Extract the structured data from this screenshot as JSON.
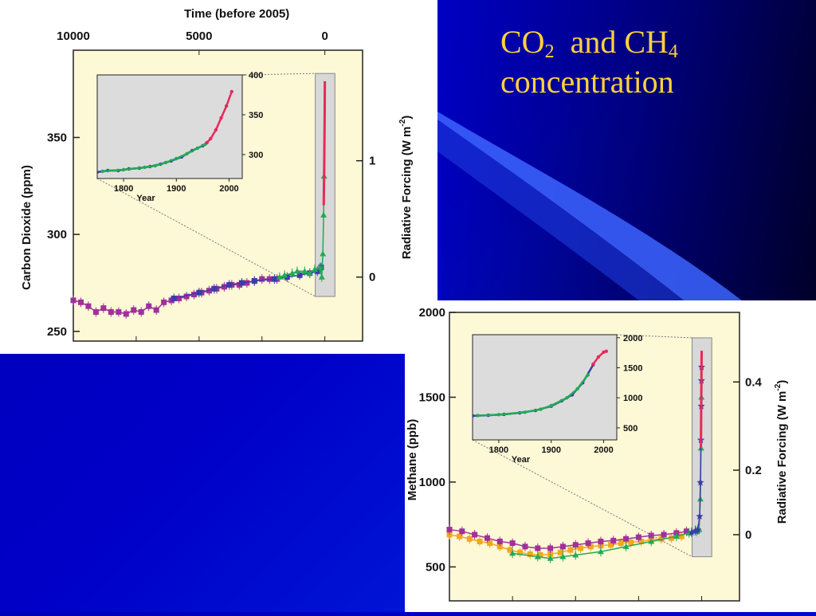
{
  "slide": {
    "title_line1_a": "CO",
    "title_line1_a_sub": "2",
    "title_line1_b": "  and CH",
    "title_line1_b_sub": "4",
    "title_line2": "concentration",
    "title_color": "#ffd23c",
    "background_color": "#0000c8"
  },
  "chart_data": [
    {
      "type": "scatter",
      "name": "co2",
      "title": "",
      "top_axis_label": "Time (before 2005)",
      "top_axis_ticks": [
        10000,
        5000,
        0
      ],
      "ylabel": "Carbon Dioxide (ppm)",
      "y_ticks": [
        250,
        300,
        350
      ],
      "ylim": [
        245,
        395
      ],
      "xlim": [
        10000,
        -1500
      ],
      "right_axis_label_main": "Radiative Forcing (W m",
      "right_axis_label_sup": "-2",
      "right_axis_label_end": ")",
      "right_axis_ticks": [
        "1",
        "0"
      ],
      "right_axis_tick_ppm": [
        338,
        278
      ],
      "background": "#fdf8d6",
      "series": [
        {
          "color": "#a0309a",
          "marker": "square",
          "points": [
            [
              10000,
              266
            ],
            [
              9700,
              265
            ],
            [
              9400,
              263
            ],
            [
              9100,
              260
            ],
            [
              8800,
              262
            ],
            [
              8500,
              260
            ],
            [
              8200,
              260
            ],
            [
              7900,
              259
            ],
            [
              7600,
              261
            ],
            [
              7300,
              260
            ],
            [
              7000,
              263
            ],
            [
              6700,
              261
            ],
            [
              6400,
              265
            ],
            [
              6100,
              266
            ],
            [
              5800,
              267
            ],
            [
              5500,
              268
            ],
            [
              5200,
              269
            ],
            [
              4900,
              270
            ],
            [
              4600,
              271
            ],
            [
              4300,
              272
            ],
            [
              4000,
              273
            ],
            [
              3700,
              274
            ],
            [
              3400,
              274
            ],
            [
              3100,
              275
            ],
            [
              2800,
              276
            ],
            [
              2500,
              277
            ],
            [
              2200,
              277
            ],
            [
              1900,
              277
            ]
          ]
        },
        {
          "color": "#3c3ca8",
          "marker": "square",
          "points": [
            [
              6000,
              267
            ],
            [
              5000,
              270
            ],
            [
              4400,
              272
            ],
            [
              3800,
              274
            ],
            [
              3300,
              275
            ],
            [
              2800,
              276
            ],
            [
              2000,
              277
            ],
            [
              1500,
              278
            ],
            [
              1000,
              279
            ],
            [
              600,
              280
            ],
            [
              300,
              281
            ],
            [
              150,
              283
            ]
          ]
        },
        {
          "color": "#22aa55",
          "marker": "triangle",
          "points": [
            [
              1800,
              278
            ],
            [
              1600,
              279
            ],
            [
              1300,
              280
            ],
            [
              1100,
              281
            ],
            [
              800,
              281
            ],
            [
              600,
              280
            ],
            [
              400,
              282
            ],
            [
              200,
              283
            ],
            [
              120,
              278
            ],
            [
              80,
              290
            ],
            [
              50,
              310
            ],
            [
              30,
              330
            ]
          ]
        },
        {
          "color": "#e8285a",
          "marker": "line",
          "points": [
            [
              45,
              315
            ],
            [
              35,
              325
            ],
            [
              25,
              335
            ],
            [
              15,
              350
            ],
            [
              5,
              365
            ],
            [
              0,
              379
            ]
          ]
        }
      ],
      "inset": {
        "xlabel": "Year",
        "x_ticks": [
          1800,
          1900,
          2000
        ],
        "xlim": [
          1750,
          2025
        ],
        "y_ticks": [
          300,
          350,
          400
        ],
        "ylim": [
          270,
          400
        ],
        "background": "#dcdcdc",
        "series": [
          {
            "color": "#3c3ca8",
            "points": [
              [
                1750,
                278
              ],
              [
                1770,
                280
              ],
              [
                1790,
                280
              ],
              [
                1810,
                282
              ],
              [
                1830,
                283
              ],
              [
                1850,
                285
              ],
              [
                1870,
                288
              ],
              [
                1890,
                292
              ],
              [
                1910,
                297
              ],
              [
                1930,
                305
              ],
              [
                1950,
                311
              ]
            ]
          },
          {
            "color": "#22aa55",
            "points": [
              [
                1760,
                279
              ],
              [
                1800,
                281
              ],
              [
                1840,
                284
              ],
              [
                1860,
                286
              ],
              [
                1880,
                290
              ],
              [
                1900,
                295
              ],
              [
                1920,
                301
              ],
              [
                1940,
                308
              ],
              [
                1955,
                313
              ]
            ]
          },
          {
            "color": "#e8285a",
            "points": [
              [
                1958,
                315
              ],
              [
                1965,
                320
              ],
              [
                1975,
                331
              ],
              [
                1985,
                346
              ],
              [
                1995,
                361
              ],
              [
                2005,
                379
              ]
            ]
          }
        ]
      }
    },
    {
      "type": "scatter",
      "name": "ch4",
      "title": "",
      "ylabel": "Methane (ppb)",
      "y_ticks": [
        500,
        1000,
        1500,
        2000
      ],
      "ylim": [
        300,
        2000
      ],
      "xlim": [
        10000,
        -1500
      ],
      "right_axis_label_main": "Radiative Forcing (W m",
      "right_axis_label_sup": "-2",
      "right_axis_label_end": ")",
      "right_axis_ticks": [
        "0.4",
        "0.2",
        "0"
      ],
      "right_axis_tick_ppb": [
        1590,
        1070,
        690
      ],
      "background": "#fdf8d6",
      "series": [
        {
          "color": "#f0a820",
          "marker": "square",
          "points": [
            [
              10000,
              690
            ],
            [
              9600,
              680
            ],
            [
              9200,
              665
            ],
            [
              8800,
              650
            ],
            [
              8400,
              640
            ],
            [
              8000,
              620
            ],
            [
              7600,
              600
            ],
            [
              7200,
              585
            ],
            [
              6800,
              575
            ],
            [
              6400,
              570
            ],
            [
              6000,
              575
            ],
            [
              5600,
              585
            ],
            [
              5200,
              600
            ],
            [
              4800,
              610
            ],
            [
              4400,
              620
            ],
            [
              4000,
              625
            ],
            [
              3600,
              630
            ],
            [
              3200,
              640
            ],
            [
              2800,
              645
            ],
            [
              2400,
              650
            ],
            [
              2000,
              660
            ],
            [
              1600,
              665
            ],
            [
              1200,
              670
            ],
            [
              800,
              680
            ]
          ]
        },
        {
          "color": "#a0309a",
          "marker": "square",
          "points": [
            [
              10000,
              720
            ],
            [
              9500,
              710
            ],
            [
              9000,
              690
            ],
            [
              8500,
              670
            ],
            [
              8000,
              650
            ],
            [
              7500,
              640
            ],
            [
              7000,
              620
            ],
            [
              6500,
              610
            ],
            [
              6000,
              610
            ],
            [
              5500,
              620
            ],
            [
              5000,
              630
            ],
            [
              4500,
              640
            ],
            [
              4000,
              650
            ],
            [
              3500,
              655
            ],
            [
              3000,
              665
            ],
            [
              2500,
              675
            ],
            [
              2000,
              685
            ],
            [
              1500,
              690
            ],
            [
              1000,
              700
            ],
            [
              600,
              710
            ]
          ]
        },
        {
          "color": "#22aa55",
          "marker": "triangle",
          "points": [
            [
              7500,
              580
            ],
            [
              6500,
              560
            ],
            [
              6000,
              550
            ],
            [
              5500,
              560
            ],
            [
              5000,
              570
            ],
            [
              4000,
              590
            ],
            [
              3000,
              620
            ],
            [
              2000,
              650
            ],
            [
              1000,
              680
            ],
            [
              500,
              700
            ],
            [
              200,
              710
            ],
            [
              100,
              720
            ],
            [
              50,
              900
            ],
            [
              25,
              1200
            ],
            [
              10,
              1500
            ]
          ]
        },
        {
          "color": "#3c3ca8",
          "marker": "star",
          "points": [
            [
              400,
              705
            ],
            [
              250,
              715
            ],
            [
              150,
              720
            ],
            [
              80,
              800
            ],
            [
              50,
              1000
            ],
            [
              30,
              1250
            ],
            [
              15,
              1450
            ],
            [
              8,
              1600
            ],
            [
              3,
              1680
            ]
          ]
        },
        {
          "color": "#e8285a",
          "marker": "line",
          "points": [
            [
              30,
              1200
            ],
            [
              15,
              1500
            ],
            [
              5,
              1700
            ],
            [
              0,
              1774
            ]
          ]
        }
      ],
      "inset": {
        "xlabel": "Year",
        "x_ticks": [
          1800,
          1900,
          2000
        ],
        "xlim": [
          1750,
          2025
        ],
        "y_ticks": [
          500,
          1000,
          1500,
          2000
        ],
        "ylim": [
          300,
          2050
        ],
        "background": "#dcdcdc",
        "series": [
          {
            "color": "#3c3ca8",
            "points": [
              [
                1750,
                700
              ],
              [
                1780,
                710
              ],
              [
                1810,
                725
              ],
              [
                1840,
                750
              ],
              [
                1870,
                790
              ],
              [
                1900,
                860
              ],
              [
                1920,
                950
              ],
              [
                1940,
                1050
              ],
              [
                1960,
                1250
              ],
              [
                1980,
                1550
              ]
            ]
          },
          {
            "color": "#22aa55",
            "points": [
              [
                1760,
                705
              ],
              [
                1800,
                720
              ],
              [
                1850,
                760
              ],
              [
                1880,
                810
              ],
              [
                1900,
                870
              ],
              [
                1930,
                1000
              ],
              [
                1950,
                1150
              ],
              [
                1970,
                1380
              ]
            ]
          },
          {
            "color": "#e8285a",
            "points": [
              [
                1980,
                1560
              ],
              [
                1990,
                1680
              ],
              [
                2000,
                1760
              ],
              [
                2005,
                1774
              ]
            ]
          }
        ]
      }
    }
  ]
}
